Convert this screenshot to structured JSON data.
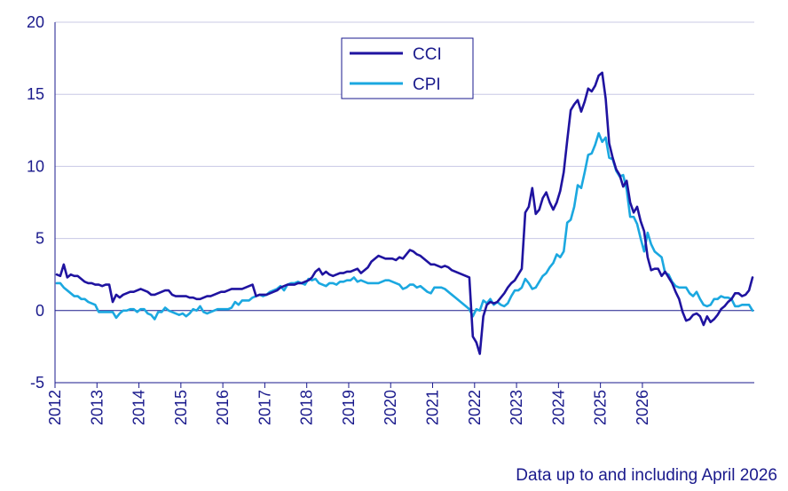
{
  "chart_data": {
    "type": "line",
    "title": "",
    "xlabel": "",
    "ylabel": "",
    "ylim": [
      -5,
      20
    ],
    "yticks": [
      -5,
      0,
      5,
      10,
      15,
      20
    ],
    "xticks": [
      "2012",
      "2013",
      "2014",
      "2015",
      "2016",
      "2017",
      "2018",
      "2019",
      "2020",
      "2021",
      "2022",
      "2023",
      "2024",
      "2025",
      "2026"
    ],
    "x_start": "2012-01",
    "x_end": "2026-04",
    "grid": true,
    "legend": "top-center",
    "footnote": "Data up to and including April 2026",
    "colors": {
      "CCI": "#1f13a0",
      "CPI": "#1ba8e0",
      "axis": "#1a1a8c",
      "grid": "#c8c8e6"
    },
    "series": [
      {
        "name": "CCI",
        "values": [
          2.5,
          2.4,
          3.2,
          2.3,
          2.5,
          2.4,
          2.4,
          2.2,
          2.0,
          1.9,
          1.9,
          1.8,
          1.8,
          1.7,
          1.8,
          1.8,
          0.6,
          1.1,
          0.9,
          1.1,
          1.2,
          1.3,
          1.3,
          1.4,
          1.5,
          1.4,
          1.3,
          1.1,
          1.1,
          1.2,
          1.3,
          1.4,
          1.4,
          1.1,
          1.0,
          1.0,
          1.0,
          1.0,
          0.9,
          0.9,
          0.8,
          0.8,
          0.9,
          1.0,
          1.0,
          1.1,
          1.2,
          1.3,
          1.3,
          1.4,
          1.5,
          1.5,
          1.5,
          1.5,
          1.6,
          1.7,
          1.8,
          1.0,
          1.1,
          1.1,
          1.1,
          1.2,
          1.3,
          1.4,
          1.6,
          1.7,
          1.8,
          1.8,
          1.8,
          1.9,
          1.9,
          2.0,
          2.1,
          2.3,
          2.7,
          2.9,
          2.5,
          2.7,
          2.5,
          2.4,
          2.5,
          2.6,
          2.6,
          2.7,
          2.7,
          2.8,
          2.9,
          2.6,
          2.8,
          3.0,
          3.4,
          3.6,
          3.8,
          3.7,
          3.6,
          3.6,
          3.6,
          3.5,
          3.7,
          3.6,
          3.9,
          4.2,
          4.1,
          3.9,
          3.8,
          3.6,
          3.4,
          3.2,
          3.2,
          3.1,
          3.0,
          3.1,
          3.0,
          2.8,
          2.7,
          2.6,
          2.5,
          2.4,
          2.3,
          -1.8,
          -2.2,
          -3.0,
          -0.4,
          0.4,
          0.6,
          0.5,
          0.6,
          0.9,
          1.2,
          1.6,
          1.9,
          2.1,
          2.5,
          2.9,
          6.8,
          7.2,
          8.5,
          6.7,
          7.0,
          7.8,
          8.2,
          7.5,
          7.0,
          7.5,
          8.3,
          9.6,
          11.8,
          13.9,
          14.3,
          14.6,
          13.8,
          14.5,
          15.4,
          15.2,
          15.6,
          16.3,
          16.5,
          14.7,
          11.6,
          10.6,
          9.8,
          9.4,
          8.6,
          9.0,
          7.5,
          6.8,
          7.2,
          6.2,
          5.5,
          3.7,
          2.8,
          2.9,
          2.9,
          2.4,
          2.7,
          2.3,
          1.9,
          1.3,
          0.8,
          -0.1,
          -0.7,
          -0.6,
          -0.3,
          -0.2,
          -0.4,
          -1.0,
          -0.4,
          -0.8,
          -0.6,
          -0.3,
          0.1,
          0.3,
          0.6,
          0.8,
          1.2,
          1.2,
          1.0,
          1.1,
          1.4,
          2.3
        ]
      },
      {
        "name": "CPI",
        "values": [
          1.9,
          1.9,
          1.6,
          1.4,
          1.2,
          1.0,
          1.0,
          0.8,
          0.8,
          0.6,
          0.5,
          0.4,
          -0.1,
          -0.1,
          -0.1,
          -0.1,
          -0.1,
          -0.5,
          -0.2,
          0.0,
          0.0,
          0.1,
          0.1,
          -0.1,
          0.1,
          0.1,
          -0.2,
          -0.3,
          -0.6,
          -0.1,
          -0.1,
          0.2,
          0.0,
          -0.1,
          -0.2,
          -0.3,
          -0.2,
          -0.4,
          -0.2,
          0.1,
          0.0,
          0.3,
          -0.1,
          -0.2,
          -0.1,
          0.0,
          0.1,
          0.1,
          0.1,
          0.1,
          0.2,
          0.6,
          0.4,
          0.7,
          0.7,
          0.7,
          0.9,
          1.0,
          1.1,
          1.0,
          1.1,
          1.3,
          1.4,
          1.5,
          1.7,
          1.4,
          1.8,
          1.9,
          1.9,
          2.0,
          1.9,
          1.8,
          2.2,
          2.1,
          2.2,
          1.9,
          1.8,
          1.7,
          1.9,
          1.9,
          1.8,
          2.0,
          2.0,
          2.1,
          2.1,
          2.3,
          2.0,
          2.1,
          2.0,
          1.9,
          1.9,
          1.9,
          1.9,
          2.0,
          2.1,
          2.1,
          2.0,
          1.9,
          1.8,
          1.5,
          1.6,
          1.8,
          1.8,
          1.6,
          1.7,
          1.5,
          1.3,
          1.2,
          1.6,
          1.6,
          1.6,
          1.5,
          1.3,
          1.1,
          0.9,
          0.7,
          0.5,
          0.3,
          0.1,
          -0.4,
          0.1,
          0.0,
          0.7,
          0.5,
          0.8,
          0.4,
          0.6,
          0.4,
          0.3,
          0.5,
          1.0,
          1.4,
          1.4,
          1.6,
          2.2,
          1.9,
          1.5,
          1.6,
          2.0,
          2.4,
          2.6,
          3.0,
          3.3,
          3.9,
          3.7,
          4.1,
          6.1,
          6.3,
          7.2,
          8.7,
          8.5,
          9.6,
          10.8,
          10.9,
          11.5,
          12.3,
          11.7,
          12.0,
          10.6,
          10.5,
          9.7,
          9.3,
          9.4,
          8.4,
          6.5,
          6.5,
          6.0,
          5.0,
          4.1,
          5.4,
          4.6,
          4.1,
          3.9,
          3.7,
          2.6,
          2.5,
          2.0,
          1.7,
          1.6,
          1.6,
          1.6,
          1.2,
          1.0,
          1.3,
          0.8,
          0.4,
          0.3,
          0.4,
          0.8,
          0.8,
          1.0,
          0.9,
          0.9,
          0.8,
          0.3,
          0.3,
          0.4,
          0.4,
          0.4,
          0.0
        ]
      }
    ]
  }
}
